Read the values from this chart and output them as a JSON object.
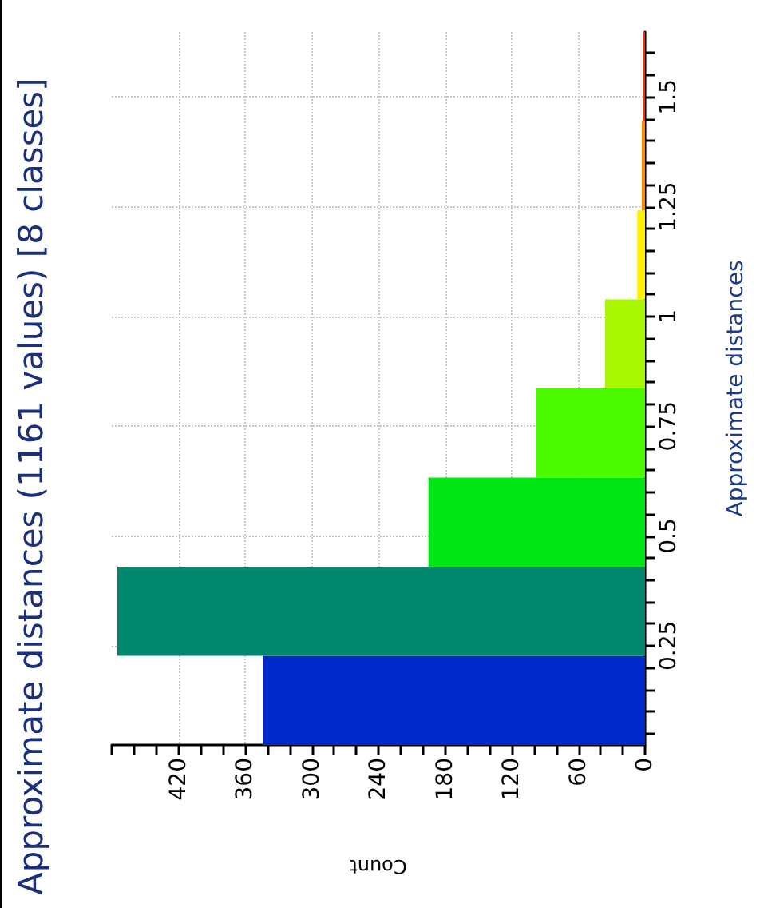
{
  "chart_data": {
    "type": "histogram",
    "orientation": "horizontal",
    "title": "Approximate distances (1161 values) [8 classes]",
    "xlabel": "Count",
    "ylabel": "Approximate distances",
    "bins": [
      0.024,
      0.227,
      0.43,
      0.633,
      0.836,
      1.039,
      1.242,
      1.445,
      1.648
    ],
    "values": [
      344,
      475,
      195,
      98,
      36,
      7,
      3,
      2
    ],
    "colors": [
      "#0029cc",
      "#00876e",
      "#00e614",
      "#4cfa00",
      "#a8f700",
      "#fff200",
      "#ff8c00",
      "#ff2a00"
    ],
    "ylim": [
      0.024,
      1.648
    ],
    "yticks": [
      {
        "value": 0.05,
        "label": null
      },
      {
        "value": 0.1,
        "label": null
      },
      {
        "value": 0.15,
        "label": null
      },
      {
        "value": 0.2,
        "label": null
      },
      0.25,
      {
        "value": 0.3,
        "label": null
      },
      {
        "value": 0.35,
        "label": null
      },
      {
        "value": 0.4,
        "label": null
      },
      {
        "value": 0.45,
        "label": null
      },
      0.5,
      {
        "value": 0.55,
        "label": null
      },
      {
        "value": 0.6,
        "label": null
      },
      {
        "value": 0.65,
        "label": null
      },
      {
        "value": 0.7,
        "label": null
      },
      0.75,
      {
        "value": 0.8,
        "label": null
      },
      {
        "value": 0.85,
        "label": null
      },
      {
        "value": 0.9,
        "label": null
      },
      {
        "value": 0.95,
        "label": null
      },
      1,
      {
        "value": 1.05,
        "label": null
      },
      {
        "value": 1.1,
        "label": null
      },
      {
        "value": 1.15,
        "label": null
      },
      {
        "value": 1.2,
        "label": null
      },
      1.25,
      {
        "value": 1.3,
        "label": null
      },
      {
        "value": 1.35,
        "label": null
      },
      {
        "value": 1.4,
        "label": null
      },
      {
        "value": 1.45,
        "label": null
      },
      1.5,
      {
        "value": 1.55,
        "label": null
      },
      {
        "value": 1.6,
        "label": null
      }
    ],
    "xlim": [
      480,
      0
    ],
    "xticks": [
      0,
      {
        "value": 20,
        "label": null
      },
      {
        "value": 40,
        "label": null
      },
      60,
      {
        "value": 80,
        "label": null
      },
      {
        "value": 100,
        "label": null
      },
      120,
      {
        "value": 140,
        "label": null
      },
      {
        "value": 160,
        "label": null
      },
      180,
      {
        "value": 200,
        "label": null
      },
      {
        "value": 220,
        "label": null
      },
      240,
      {
        "value": 260,
        "label": null
      },
      {
        "value": 280,
        "label": null
      },
      300,
      {
        "value": 320,
        "label": null
      },
      {
        "value": 340,
        "label": null
      },
      360,
      {
        "value": 380,
        "label": null
      },
      {
        "value": 400,
        "label": null
      },
      420,
      {
        "value": 440,
        "label": null
      },
      {
        "value": 460,
        "label": null
      },
      {
        "value": 480,
        "label": null
      }
    ],
    "grid": true
  }
}
